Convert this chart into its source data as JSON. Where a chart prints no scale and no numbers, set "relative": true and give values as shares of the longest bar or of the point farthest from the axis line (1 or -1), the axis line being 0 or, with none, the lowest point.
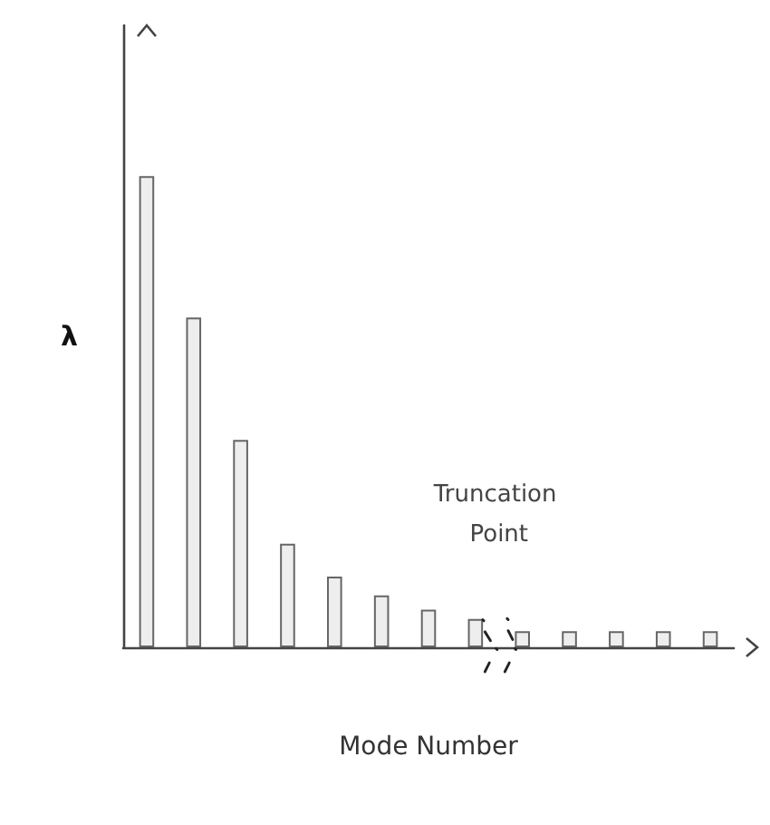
{
  "chart_data": {
    "type": "bar",
    "relative": true,
    "ylabel": "λ",
    "xlabel": "Mode Number",
    "annotations": [
      "Truncation Point"
    ],
    "color": "#eeeeee",
    "grid": false,
    "categories": [
      null,
      null,
      null,
      null,
      null,
      null,
      null,
      null,
      null,
      null,
      null,
      null,
      null
    ],
    "values": [
      1,
      0.7,
      0.44,
      0.22,
      0.15,
      0.11,
      0.08,
      0.06,
      0.034,
      0.034,
      0.034,
      0.034,
      0.034
    ]
  }
}
